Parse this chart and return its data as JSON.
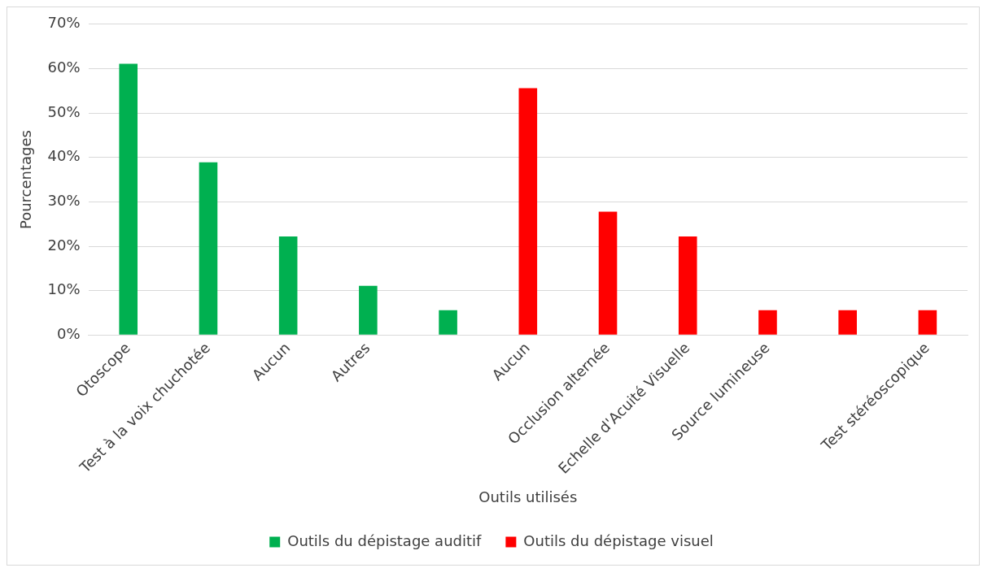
{
  "chart_data": {
    "type": "bar",
    "xlabel": "Outils utilisés",
    "ylabel": "Pourcentages",
    "categories": [
      "Otoscope",
      "Test à la voix chuchotée",
      "Aucun",
      "Autres",
      null,
      "Aucun",
      "Occlusion alternée",
      "Echelle d'Acuité Visuelle",
      "Source lumineuse",
      null,
      "Test stéréoscopique"
    ],
    "series": [
      {
        "name": "Outils du dépistage auditif",
        "color": "#00b050",
        "values": [
          61.1,
          38.9,
          22.2,
          11.1,
          5.6,
          null,
          null,
          null,
          null,
          null,
          null
        ]
      },
      {
        "name": "Outils du dépistage visuel",
        "color": "#ff0000",
        "values": [
          null,
          null,
          null,
          null,
          null,
          55.6,
          27.8,
          22.2,
          5.6,
          5.6,
          5.6
        ]
      }
    ],
    "ylim": [
      0,
      70
    ],
    "yticks": [
      {
        "value": 0,
        "label": "0%"
      },
      {
        "value": 10,
        "label": "10%"
      },
      {
        "value": 20,
        "label": "20%"
      },
      {
        "value": 30,
        "label": "30%"
      },
      {
        "value": 40,
        "label": "40%"
      },
      {
        "value": 50,
        "label": "50%"
      },
      {
        "value": 60,
        "label": "60%"
      },
      {
        "value": 70,
        "label": "70%"
      }
    ],
    "grid": "y",
    "legend": "bottom"
  }
}
